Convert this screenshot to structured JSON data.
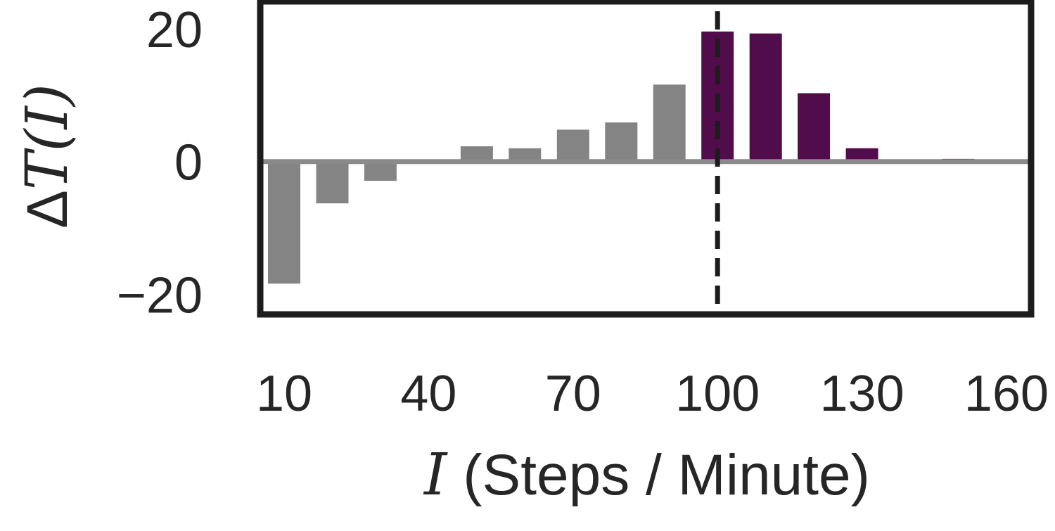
{
  "chart_data": {
    "type": "bar",
    "xlabel": {
      "variable": "I",
      "text": " (Steps / Minute)"
    },
    "ylabel": {
      "delta": "Δ",
      "variable": "T(I)"
    },
    "x_tick_labels": [
      "10",
      "40",
      "70",
      "100",
      "130",
      "160"
    ],
    "x_ticks": [
      10,
      40,
      70,
      100,
      130,
      160
    ],
    "y_tick_labels": [
      "−20",
      "0",
      "20"
    ],
    "y_ticks": [
      -20,
      0,
      20
    ],
    "xlim": [
      10,
      160
    ],
    "ylim": [
      -22.5,
      23.5
    ],
    "reference_line": {
      "x": 100,
      "style": "dashed"
    },
    "grid": false,
    "legend": false,
    "x": [
      10,
      20,
      30,
      40,
      50,
      60,
      70,
      80,
      90,
      100,
      110,
      120,
      130,
      140,
      150
    ],
    "values": [
      -18.4,
      -6.3,
      -2.9,
      0.0,
      2.3,
      2.0,
      4.8,
      5.9,
      11.6,
      19.6,
      19.3,
      10.3,
      2.0,
      0.3,
      0.4
    ],
    "colors": {
      "below_threshold": "#848484",
      "above_threshold": "#510c4b",
      "zero_line": "#8a8a8a",
      "axes": "#1c1c1c",
      "reference_line": "#1c1c1c"
    }
  }
}
